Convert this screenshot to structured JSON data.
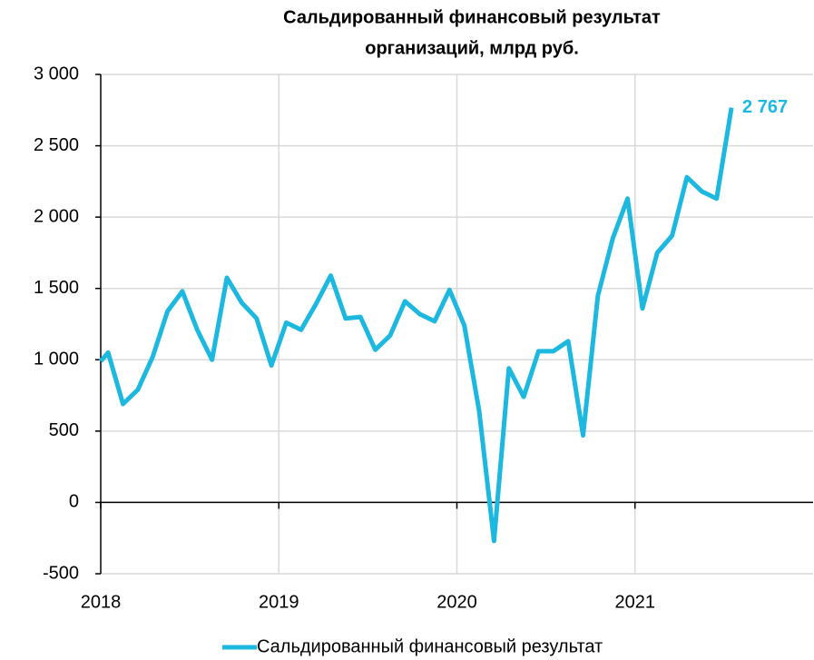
{
  "chart_data": {
    "type": "line",
    "title": [
      "Сальдированный финансовый результат",
      "организаций, млрд руб."
    ],
    "categories": [
      null,
      "2018",
      null,
      null,
      null,
      null,
      null,
      null,
      null,
      null,
      null,
      null,
      null,
      "2019",
      null,
      null,
      null,
      null,
      null,
      null,
      null,
      null,
      null,
      null,
      null,
      "2020",
      null,
      null,
      null,
      null,
      null,
      null,
      null,
      null,
      null,
      null,
      null,
      "2021",
      null,
      null,
      null,
      null,
      null,
      null,
      null,
      null,
      null,
      null,
      null
    ],
    "series": [
      {
        "name": "Сальдированный финансовый результат",
        "color": "#1cb8e0",
        "values": [
          990,
          1050,
          690,
          790,
          1020,
          1340,
          1480,
          1210,
          1000,
          1575,
          1400,
          1290,
          960,
          1260,
          1210,
          1390,
          1590,
          1290,
          1300,
          1070,
          1170,
          1410,
          1320,
          1270,
          1490,
          1240,
          640,
          -270,
          940,
          740,
          1060,
          1060,
          1130,
          470,
          1450,
          1850,
          2130,
          1360,
          1750,
          1870,
          2280,
          2180,
          2130,
          2767,
          null,
          null,
          null,
          null,
          null
        ],
        "value_labels": [
          null,
          null,
          null,
          null,
          null,
          null,
          null,
          null,
          null,
          null,
          null,
          null,
          null,
          null,
          null,
          null,
          null,
          null,
          null,
          null,
          null,
          null,
          null,
          null,
          null,
          null,
          null,
          null,
          null,
          null,
          null,
          null,
          null,
          null,
          null,
          null,
          null,
          null,
          null,
          null,
          null,
          null,
          null,
          "2 767",
          null,
          null,
          null,
          null,
          null
        ]
      }
    ],
    "ylim": [
      -500,
      3000
    ],
    "yticks": [
      -500,
      0,
      500,
      {
        "value": 1000,
        "label": "1 000"
      },
      {
        "value": 1500,
        "label": "1 500"
      },
      {
        "value": 2000,
        "label": "2 000"
      },
      {
        "value": 2500,
        "label": "2 500"
      },
      {
        "value": 3000,
        "label": "3 000"
      }
    ],
    "grid": true,
    "legend": "bottom"
  }
}
